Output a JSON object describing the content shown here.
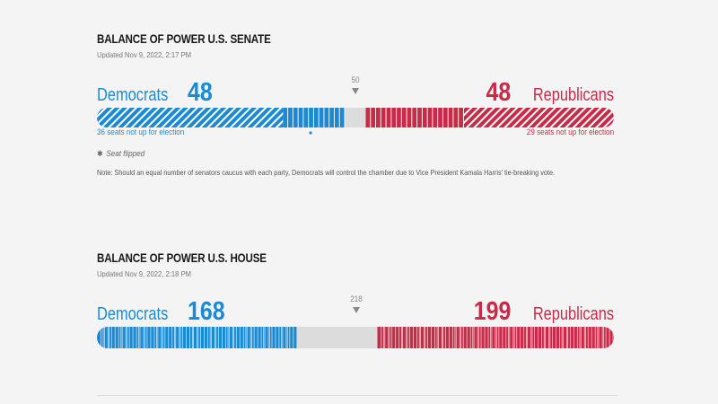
{
  "colors": {
    "dem": "#1b8ad3",
    "dem_dark": "#1477bb",
    "rep": "#c92a48",
    "rep_dark": "#b31f3c",
    "undecided": "#dcdcdc"
  },
  "senate": {
    "title": "BALANCE OF POWER U.S. SENATE",
    "updated": "Updated Nov 9, 2022, 2:17 PM",
    "dem_label": "Democrats",
    "dem_count": "48",
    "rep_label": "Republicans",
    "rep_count": "48",
    "majority_label": "50",
    "dem_note": "36 seats not up for election",
    "rep_note": "29 seats not up for election",
    "flip_legend": "Seat flipped",
    "flip_icon": "asterisk-icon",
    "note": "Note: Should an equal number of senators caucus with each party, Democrats will control the chamber due to Vice President Kamala Harris' tie-breaking vote."
  },
  "house": {
    "title": "BALANCE OF POWER U.S. HOUSE",
    "updated": "Updated Nov 9, 2022, 2:18 PM",
    "dem_label": "Democrats",
    "dem_count": "168",
    "rep_label": "Republicans",
    "rep_count": "199",
    "majority_label": "218"
  },
  "chart_data": [
    {
      "type": "bar",
      "title": "BALANCE OF POWER U.S. SENATE",
      "total": 100,
      "majority": 50,
      "series": [
        {
          "name": "Democrats",
          "values": [
            48
          ],
          "not_up": 36
        },
        {
          "name": "Undecided",
          "values": [
            4
          ]
        },
        {
          "name": "Republicans",
          "values": [
            48
          ],
          "not_up": 29
        }
      ],
      "flipped_dem": 1
    },
    {
      "type": "bar",
      "title": "BALANCE OF POWER U.S. HOUSE",
      "total": 435,
      "majority": 218,
      "series": [
        {
          "name": "Democrats",
          "values": [
            168
          ]
        },
        {
          "name": "Undecided",
          "values": [
            68
          ]
        },
        {
          "name": "Republicans",
          "values": [
            199
          ]
        }
      ]
    }
  ]
}
